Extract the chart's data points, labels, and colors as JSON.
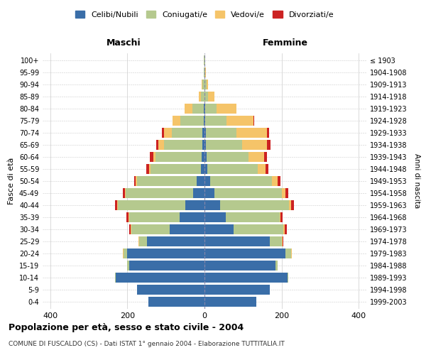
{
  "age_groups": [
    "0-4",
    "5-9",
    "10-14",
    "15-19",
    "20-24",
    "25-29",
    "30-34",
    "35-39",
    "40-44",
    "45-49",
    "50-54",
    "55-59",
    "60-64",
    "65-69",
    "70-74",
    "75-79",
    "80-84",
    "85-89",
    "90-94",
    "95-99",
    "100+"
  ],
  "birth_years": [
    "1999-2003",
    "1994-1998",
    "1989-1993",
    "1984-1988",
    "1979-1983",
    "1974-1978",
    "1969-1973",
    "1964-1968",
    "1959-1963",
    "1954-1958",
    "1949-1953",
    "1944-1948",
    "1939-1943",
    "1934-1938",
    "1929-1933",
    "1924-1928",
    "1919-1923",
    "1914-1918",
    "1909-1913",
    "1904-1908",
    "≤ 1903"
  ],
  "colors": {
    "celibi": "#3a6ea8",
    "coniugati": "#b5c98e",
    "vedovi": "#f5c469",
    "divorziati": "#cc2222"
  },
  "males": {
    "celibi": [
      145,
      175,
      230,
      195,
      200,
      150,
      90,
      65,
      50,
      30,
      20,
      10,
      8,
      5,
      5,
      2,
      2,
      0,
      0,
      0,
      0
    ],
    "coniugati": [
      0,
      0,
      2,
      5,
      10,
      20,
      100,
      130,
      175,
      175,
      155,
      130,
      120,
      100,
      80,
      60,
      30,
      10,
      5,
      2,
      1
    ],
    "vedovi": [
      0,
      0,
      0,
      0,
      1,
      2,
      2,
      2,
      2,
      2,
      3,
      3,
      5,
      15,
      20,
      20,
      20,
      5,
      2,
      0,
      0
    ],
    "divorziati": [
      0,
      0,
      0,
      0,
      0,
      0,
      3,
      5,
      5,
      5,
      5,
      8,
      8,
      5,
      5,
      0,
      0,
      0,
      0,
      0,
      0
    ]
  },
  "females": {
    "celibi": [
      135,
      170,
      215,
      185,
      210,
      170,
      75,
      55,
      40,
      25,
      15,
      8,
      5,
      3,
      3,
      2,
      2,
      0,
      0,
      0,
      0
    ],
    "coniugati": [
      0,
      0,
      2,
      5,
      15,
      30,
      130,
      140,
      180,
      175,
      160,
      130,
      110,
      95,
      80,
      55,
      30,
      10,
      5,
      2,
      1
    ],
    "vedovi": [
      0,
      0,
      0,
      0,
      1,
      2,
      3,
      3,
      5,
      10,
      15,
      20,
      40,
      65,
      80,
      70,
      50,
      15,
      5,
      2,
      0
    ],
    "divorziati": [
      0,
      0,
      0,
      0,
      1,
      2,
      5,
      5,
      8,
      8,
      8,
      8,
      8,
      8,
      5,
      2,
      0,
      0,
      0,
      0,
      0
    ]
  },
  "title": "Popolazione per età, sesso e stato civile - 2004",
  "subtitle": "COMUNE DI FUSCALDO (CS) - Dati ISTAT 1° gennaio 2004 - Elaborazione TUTTITALIA.IT",
  "xlabel_left": "Maschi",
  "xlabel_right": "Femmine",
  "ylabel_left": "Fasce di età",
  "ylabel_right": "Anni di nascita",
  "xlim": 420,
  "legend_labels": [
    "Celibi/Nubili",
    "Coniugati/e",
    "Vedovi/e",
    "Divorziati/e"
  ],
  "background_color": "#ffffff"
}
